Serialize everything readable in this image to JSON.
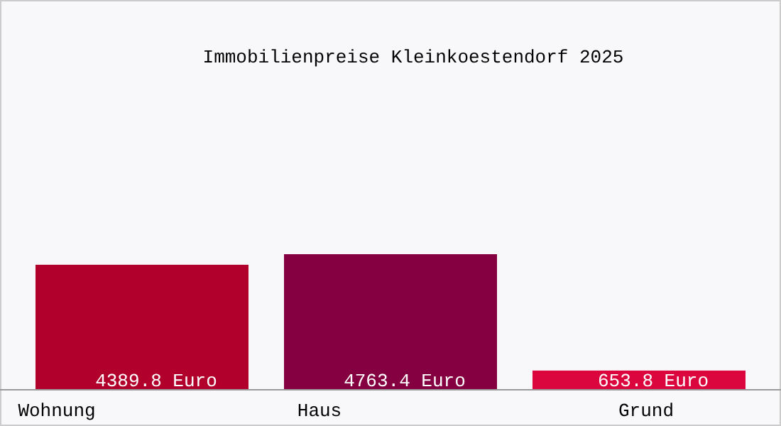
{
  "chart_data": {
    "type": "bar",
    "title": "Immobilienpreise Kleinkoestendorf 2025",
    "categories": [
      "Wohnung",
      "Haus",
      "Grund"
    ],
    "values": [
      4389.8,
      4763.4,
      653.8
    ],
    "colors": [
      "#b0002b",
      "#850040",
      "#dc063e"
    ],
    "value_labels": [
      "4389.8 Euro",
      "4763.4 Euro",
      "653.8 Euro"
    ]
  }
}
